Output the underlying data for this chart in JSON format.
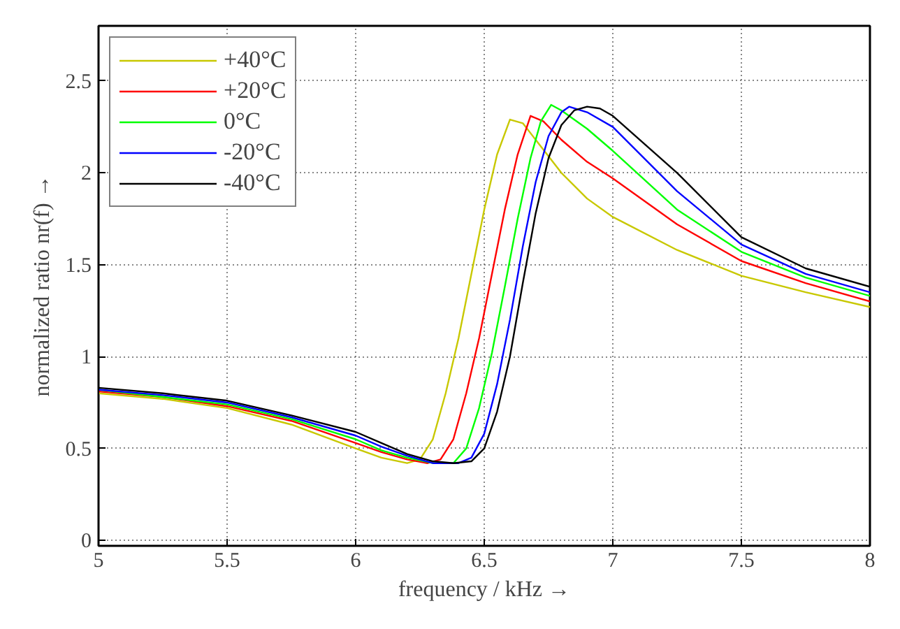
{
  "chart_data": {
    "type": "line",
    "xlabel": "frequency / kHz →",
    "ylabel": "normalized ratio nr(f) →",
    "xlim": [
      5,
      8
    ],
    "xticks": [
      5,
      5.5,
      6,
      6.5,
      7,
      7.5,
      8
    ],
    "ylim": [
      -0.03,
      2.8
    ],
    "yticks": [
      0,
      0.5,
      1,
      1.5,
      2,
      2.5
    ],
    "grid": true,
    "legend": "top left",
    "series": [
      {
        "name": "+40°C",
        "color": "#c8c800",
        "x": [
          5.0,
          5.25,
          5.5,
          5.75,
          6.0,
          6.1,
          6.2,
          6.25,
          6.3,
          6.35,
          6.4,
          6.45,
          6.5,
          6.55,
          6.6,
          6.65,
          6.7,
          6.8,
          6.9,
          7.0,
          7.25,
          7.5,
          7.75,
          8.0
        ],
        "values": [
          0.8,
          0.77,
          0.72,
          0.63,
          0.5,
          0.45,
          0.42,
          0.44,
          0.55,
          0.8,
          1.1,
          1.45,
          1.8,
          2.1,
          2.29,
          2.27,
          2.18,
          2.0,
          1.86,
          1.76,
          1.58,
          1.44,
          1.35,
          1.27
        ]
      },
      {
        "name": "+20°C",
        "color": "#ff0000",
        "x": [
          5.0,
          5.25,
          5.5,
          5.75,
          6.0,
          6.1,
          6.2,
          6.28,
          6.33,
          6.38,
          6.43,
          6.48,
          6.53,
          6.58,
          6.63,
          6.68,
          6.73,
          6.8,
          6.9,
          7.0,
          7.25,
          7.5,
          7.75,
          8.0
        ],
        "values": [
          0.81,
          0.78,
          0.73,
          0.65,
          0.53,
          0.48,
          0.44,
          0.42,
          0.44,
          0.55,
          0.8,
          1.1,
          1.45,
          1.8,
          2.1,
          2.31,
          2.28,
          2.18,
          2.06,
          1.97,
          1.72,
          1.52,
          1.4,
          1.3
        ]
      },
      {
        "name": "0°C",
        "color": "#00ff00",
        "x": [
          5.0,
          5.25,
          5.5,
          5.75,
          6.0,
          6.1,
          6.2,
          6.3,
          6.38,
          6.43,
          6.48,
          6.53,
          6.58,
          6.63,
          6.68,
          6.72,
          6.76,
          6.8,
          6.9,
          7.0,
          7.25,
          7.5,
          7.75,
          8.0
        ],
        "values": [
          0.82,
          0.78,
          0.74,
          0.66,
          0.55,
          0.49,
          0.45,
          0.42,
          0.42,
          0.5,
          0.72,
          1.02,
          1.38,
          1.75,
          2.08,
          2.28,
          2.37,
          2.34,
          2.24,
          2.12,
          1.8,
          1.57,
          1.43,
          1.33
        ]
      },
      {
        "name": "-20°C",
        "color": "#0000ff",
        "x": [
          5.0,
          5.25,
          5.5,
          5.75,
          6.0,
          6.1,
          6.2,
          6.3,
          6.4,
          6.45,
          6.5,
          6.55,
          6.6,
          6.65,
          6.7,
          6.75,
          6.8,
          6.83,
          6.9,
          7.0,
          7.25,
          7.5,
          7.75,
          8.0
        ],
        "values": [
          0.82,
          0.79,
          0.75,
          0.67,
          0.57,
          0.51,
          0.46,
          0.42,
          0.42,
          0.45,
          0.58,
          0.85,
          1.2,
          1.6,
          1.95,
          2.2,
          2.33,
          2.36,
          2.33,
          2.25,
          1.9,
          1.61,
          1.45,
          1.35
        ]
      },
      {
        "name": "-40°C",
        "color": "#000000",
        "x": [
          5.0,
          5.25,
          5.5,
          5.75,
          6.0,
          6.1,
          6.2,
          6.3,
          6.38,
          6.45,
          6.5,
          6.55,
          6.6,
          6.65,
          6.7,
          6.75,
          6.8,
          6.85,
          6.9,
          6.95,
          7.0,
          7.25,
          7.5,
          7.75,
          8.0
        ],
        "values": [
          0.83,
          0.8,
          0.76,
          0.68,
          0.59,
          0.53,
          0.47,
          0.43,
          0.42,
          0.43,
          0.5,
          0.7,
          1.0,
          1.4,
          1.78,
          2.08,
          2.26,
          2.34,
          2.36,
          2.35,
          2.31,
          2.0,
          1.65,
          1.48,
          1.38
        ]
      }
    ]
  }
}
